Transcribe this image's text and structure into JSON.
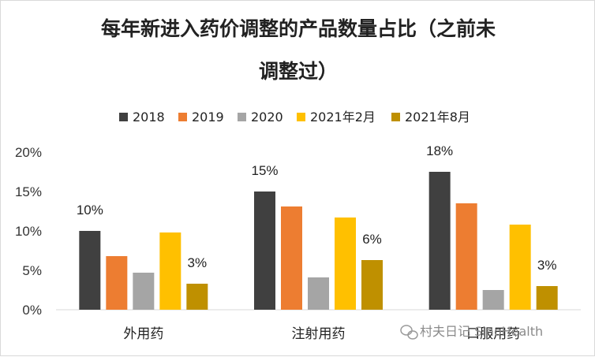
{
  "chart_data": {
    "type": "bar",
    "title_lines": [
      "每年新进入药价调整的产品数量占比（之前未",
      "调整过）"
    ],
    "categories": [
      "外用药",
      "注射用药",
      "口服用药"
    ],
    "series": [
      {
        "name": "2018",
        "color": "#404040",
        "values": [
          10,
          15,
          17.5
        ]
      },
      {
        "name": "2019",
        "color": "#ED7D31",
        "values": [
          6.8,
          13.1,
          13.5
        ]
      },
      {
        "name": "2020",
        "color": "#A5A5A5",
        "values": [
          4.7,
          4.1,
          2.5
        ]
      },
      {
        "name": "2021年2月",
        "color": "#FFC000",
        "values": [
          9.8,
          11.7,
          10.8
        ]
      },
      {
        "name": "2021年8月",
        "color": "#BF9000",
        "values": [
          3.3,
          6.3,
          3.0
        ]
      }
    ],
    "data_labels": [
      {
        "series": 0,
        "category": 0,
        "text": "10%"
      },
      {
        "series": 4,
        "category": 0,
        "text": "3%"
      },
      {
        "series": 0,
        "category": 1,
        "text": "15%"
      },
      {
        "series": 4,
        "category": 1,
        "text": "6%"
      },
      {
        "series": 0,
        "category": 2,
        "text": "18%"
      },
      {
        "series": 4,
        "category": 2,
        "text": "3%"
      }
    ],
    "y_ticks": [
      "0%",
      "5%",
      "10%",
      "15%",
      "20%"
    ],
    "ylim": [
      0,
      20
    ],
    "unit": "%",
    "grid": false,
    "legend_position": "top"
  },
  "watermark": {
    "text": "村夫日记 SinoHealth"
  }
}
